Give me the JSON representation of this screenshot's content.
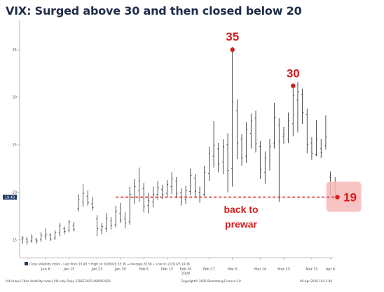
{
  "title": "VIX: Surged above 30 and then closed below 20",
  "chart_data": {
    "type": "ohlc",
    "ylim": [
      13.5,
      37.5
    ],
    "yticks": [
      "15",
      "20",
      "25",
      "30",
      "35"
    ],
    "last_value_tag": "19.49",
    "x_labels": [
      {
        "label": "Jan 8",
        "day": 5
      },
      {
        "label": "Jan 15",
        "day": 10
      },
      {
        "label": "Jan 23",
        "day": 16
      },
      {
        "label": "Jan 30",
        "day": 21
      },
      {
        "label": "Feb 6",
        "day": 26
      },
      {
        "label": "Feb 13",
        "day": 31
      },
      {
        "label": "Feb 20",
        "day": 35
      },
      {
        "label": "Feb 27",
        "day": 40
      },
      {
        "label": "Mar 6",
        "day": 45
      },
      {
        "label": "Mar 16",
        "day": 51
      },
      {
        "label": "Mar 23",
        "day": 56
      },
      {
        "label": "Mar 31",
        "day": 62
      },
      {
        "label": "Apr 6",
        "day": 66
      }
    ],
    "year_label": "2026",
    "year_label_day": 35,
    "bars": [
      {
        "d": 0,
        "h": 15.4,
        "l": 14.6,
        "o": 15.0,
        "c": 15.2
      },
      {
        "d": 1,
        "h": 15.3,
        "l": 14.5,
        "o": 15.1,
        "c": 14.8
      },
      {
        "d": 2,
        "h": 15.6,
        "l": 14.7,
        "o": 14.9,
        "c": 15.3
      },
      {
        "d": 3,
        "h": 15.2,
        "l": 14.6,
        "o": 15.0,
        "c": 14.9
      },
      {
        "d": 4,
        "h": 15.8,
        "l": 14.8,
        "o": 15.0,
        "c": 15.5
      },
      {
        "d": 5,
        "h": 16.2,
        "l": 15.0,
        "o": 15.4,
        "c": 15.6
      },
      {
        "d": 6,
        "h": 15.7,
        "l": 14.9,
        "o": 15.5,
        "c": 15.1
      },
      {
        "d": 7,
        "h": 16.0,
        "l": 15.0,
        "o": 15.2,
        "c": 15.8
      },
      {
        "d": 8,
        "h": 16.8,
        "l": 15.4,
        "o": 15.8,
        "c": 16.5
      },
      {
        "d": 9,
        "h": 16.4,
        "l": 15.6,
        "o": 16.2,
        "c": 15.9
      },
      {
        "d": 10,
        "h": 17.1,
        "l": 15.8,
        "o": 16.0,
        "c": 16.9
      },
      {
        "d": 11,
        "h": 16.9,
        "l": 15.9,
        "o": 16.5,
        "c": 16.1
      },
      {
        "d": 12,
        "h": 19.8,
        "l": 18.0,
        "o": 18.3,
        "c": 19.2
      },
      {
        "d": 13,
        "h": 20.9,
        "l": 18.5,
        "o": 19.0,
        "c": 19.9
      },
      {
        "d": 14,
        "h": 20.2,
        "l": 18.6,
        "o": 19.6,
        "c": 18.9
      },
      {
        "d": 15,
        "h": 19.5,
        "l": 18.1,
        "o": 18.8,
        "c": 18.4
      },
      {
        "d": 16,
        "h": 17.6,
        "l": 15.4,
        "o": 17.2,
        "c": 16.2
      },
      {
        "d": 17,
        "h": 16.8,
        "l": 15.6,
        "o": 16.0,
        "c": 16.4
      },
      {
        "d": 18,
        "h": 17.8,
        "l": 15.8,
        "o": 16.2,
        "c": 17.3
      },
      {
        "d": 19,
        "h": 17.4,
        "l": 16.1,
        "o": 17.0,
        "c": 16.5
      },
      {
        "d": 20,
        "h": 18.6,
        "l": 16.3,
        "o": 16.6,
        "c": 18.0
      },
      {
        "d": 21,
        "h": 18.9,
        "l": 16.8,
        "o": 17.8,
        "c": 17.1
      },
      {
        "d": 22,
        "h": 17.9,
        "l": 16.2,
        "o": 17.2,
        "c": 16.8
      },
      {
        "d": 23,
        "h": 20.6,
        "l": 16.6,
        "o": 16.9,
        "c": 19.8
      },
      {
        "d": 24,
        "h": 21.4,
        "l": 18.8,
        "o": 19.5,
        "c": 20.6
      },
      {
        "d": 25,
        "h": 22.6,
        "l": 19.0,
        "o": 20.2,
        "c": 21.2
      },
      {
        "d": 26,
        "h": 21.0,
        "l": 17.9,
        "o": 20.4,
        "c": 18.5
      },
      {
        "d": 27,
        "h": 19.9,
        "l": 17.8,
        "o": 18.6,
        "c": 19.1
      },
      {
        "d": 28,
        "h": 20.6,
        "l": 18.4,
        "o": 19.0,
        "c": 19.8
      },
      {
        "d": 29,
        "h": 21.2,
        "l": 19.2,
        "o": 19.8,
        "c": 20.5
      },
      {
        "d": 30,
        "h": 20.8,
        "l": 19.3,
        "o": 20.3,
        "c": 19.8
      },
      {
        "d": 31,
        "h": 21.3,
        "l": 19.5,
        "o": 19.9,
        "c": 20.8
      },
      {
        "d": 32,
        "h": 22.1,
        "l": 19.8,
        "o": 20.6,
        "c": 21.4
      },
      {
        "d": 33,
        "h": 21.6,
        "l": 19.4,
        "o": 21.2,
        "c": 19.9
      },
      {
        "d": 34,
        "h": 20.4,
        "l": 18.6,
        "o": 20.0,
        "c": 19.0
      },
      {
        "d": 35,
        "h": 20.7,
        "l": 18.8,
        "o": 19.2,
        "c": 20.2
      },
      {
        "d": 36,
        "h": 22.5,
        "l": 19.7,
        "o": 20.1,
        "c": 21.8
      },
      {
        "d": 37,
        "h": 21.9,
        "l": 19.5,
        "o": 21.5,
        "c": 20.1
      },
      {
        "d": 38,
        "h": 20.6,
        "l": 18.9,
        "o": 20.0,
        "c": 19.5
      },
      {
        "d": 39,
        "h": 22.8,
        "l": 19.6,
        "o": 19.8,
        "c": 22.1
      },
      {
        "d": 40,
        "h": 24.8,
        "l": 21.2,
        "o": 22.0,
        "c": 24.1
      },
      {
        "d": 41,
        "h": 27.5,
        "l": 22.6,
        "o": 23.8,
        "c": 24.9
      },
      {
        "d": 42,
        "h": 25.2,
        "l": 22.1,
        "o": 24.6,
        "c": 23.0
      },
      {
        "d": 43,
        "h": 25.6,
        "l": 21.9,
        "o": 23.2,
        "c": 24.8
      },
      {
        "d": 44,
        "h": 26.2,
        "l": 20.0,
        "o": 25.0,
        "c": 22.3
      },
      {
        "d": 45,
        "h": 35.3,
        "l": 20.6,
        "o": 22.5,
        "c": 29.5
      },
      {
        "d": 46,
        "h": 29.8,
        "l": 23.5,
        "o": 28.6,
        "c": 25.2
      },
      {
        "d": 47,
        "h": 26.1,
        "l": 22.8,
        "o": 25.6,
        "c": 23.6
      },
      {
        "d": 48,
        "h": 27.4,
        "l": 23.1,
        "o": 23.8,
        "c": 26.6
      },
      {
        "d": 49,
        "h": 28.3,
        "l": 24.6,
        "o": 26.2,
        "c": 27.5
      },
      {
        "d": 50,
        "h": 28.6,
        "l": 24.2,
        "o": 27.8,
        "c": 25.1
      },
      {
        "d": 51,
        "h": 25.4,
        "l": 21.4,
        "o": 24.8,
        "c": 22.4
      },
      {
        "d": 52,
        "h": 24.3,
        "l": 20.9,
        "o": 22.1,
        "c": 23.6
      },
      {
        "d": 53,
        "h": 25.6,
        "l": 22.3,
        "o": 23.4,
        "c": 24.8
      },
      {
        "d": 54,
        "h": 29.4,
        "l": 24.6,
        "o": 25.2,
        "c": 27.9
      },
      {
        "d": 55,
        "h": 27.8,
        "l": 19.0,
        "o": 27.1,
        "c": 25.4
      },
      {
        "d": 56,
        "h": 26.9,
        "l": 25.1,
        "o": 25.9,
        "c": 26.1
      },
      {
        "d": 57,
        "h": 28.4,
        "l": 25.2,
        "o": 25.6,
        "c": 27.6
      },
      {
        "d": 58,
        "h": 31.3,
        "l": 25.9,
        "o": 27.2,
        "c": 30.2
      },
      {
        "d": 59,
        "h": 31.6,
        "l": 26.3,
        "o": 29.7,
        "c": 30.6
      },
      {
        "d": 60,
        "h": 30.9,
        "l": 27.2,
        "o": 30.3,
        "c": 28.4
      },
      {
        "d": 61,
        "h": 28.8,
        "l": 24.1,
        "o": 28.2,
        "c": 25.0
      },
      {
        "d": 62,
        "h": 25.8,
        "l": 23.4,
        "o": 25.2,
        "c": 24.1
      },
      {
        "d": 63,
        "h": 27.6,
        "l": 23.8,
        "o": 24.0,
        "c": 25.6
      },
      {
        "d": 64,
        "h": 25.6,
        "l": 23.6,
        "o": 24.6,
        "c": 24.2
      },
      {
        "d": 65,
        "h": 28.1,
        "l": 24.5,
        "o": 24.9,
        "c": 25.8
      },
      {
        "d": 66,
        "h": 22.2,
        "l": 19.6,
        "o": 21.6,
        "c": 20.4
      },
      {
        "d": 67,
        "h": 21.6,
        "l": 19.1,
        "o": 20.6,
        "c": 19.5
      }
    ],
    "annotations": {
      "peak_label": "35",
      "peak_point": {
        "d": 45,
        "v": 35.0
      },
      "second_label": "30",
      "second_point": {
        "d": 58,
        "v": 31.2
      },
      "last_label": "19",
      "last_point": {
        "d": 67.5,
        "v": 19.5
      },
      "prewar_line_value": 19.5,
      "prewar_line_start_day": 20,
      "prewar_text_line1": "back to",
      "prewar_text_line2": "prewar"
    },
    "legend_line": "Close Volatility Index – Last Price 19.49   ↑ High on 03/06/26 35.30   → Average 20.58   ↓ Low on 12/31/25 14.38",
    "footer_left": "VIX Index (Cboe Volatility Index) VIX only Daily 31DEC2025-09APR2026",
    "footer_center": "Copyright© 2026 Bloomberg Finance L.P.",
    "footer_right": "09-Apr-2026 19:11:46",
    "colors": {
      "title": "#1f2d4a",
      "bars": "#2b2b2b",
      "accent": "#d81b1b",
      "callout_bg": "#f7b8b8",
      "tag_bg": "#1f3b66"
    }
  }
}
